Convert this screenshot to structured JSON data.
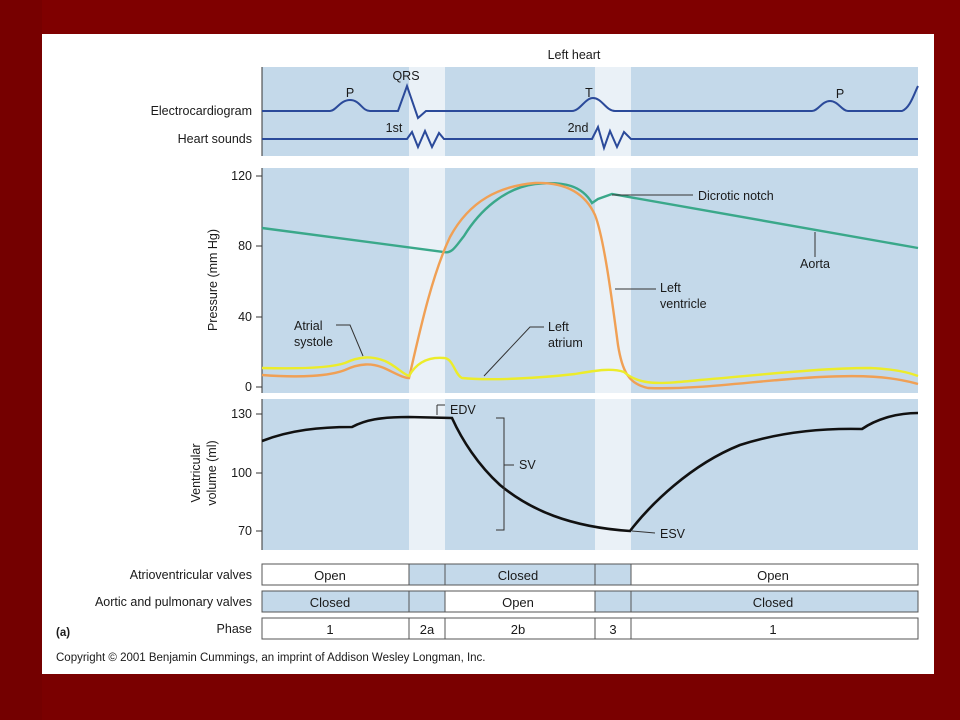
{
  "slide": {
    "background_color": "#7a0000",
    "shadow_color": "#5a0000"
  },
  "colors": {
    "panel_fill": "#c4d9ea",
    "highlight_band": "#eaf1f7",
    "ecg_line": "#2b4a9a",
    "aorta": "#3aa88a",
    "left_ventricle": "#f0a055",
    "left_atrium": "#ecec2a",
    "volume": "#111111"
  },
  "figure": {
    "title": "Left heart",
    "panel_label": "(a)",
    "copyright": "Copyright © 2001 Benjamin Cummings, an imprint of Addison Wesley Longman, Inc."
  },
  "top_panel": {
    "row_labels": [
      "Electrocardiogram",
      "Heart sounds"
    ],
    "wave_labels": {
      "p1": "P",
      "qrs": "QRS",
      "t": "T",
      "p2": "P"
    },
    "sound_labels": {
      "first": "1st",
      "second": "2nd"
    }
  },
  "pressure_panel": {
    "ylabel": "Pressure (mm Hg)",
    "ticks": [
      "120",
      "80",
      "40",
      "0"
    ],
    "annotations": {
      "dicrotic_notch": "Dicrotic notch",
      "aorta": "Aorta",
      "left_ventricle_1": "Left",
      "left_ventricle_2": "ventricle",
      "atrial_systole_1": "Atrial",
      "atrial_systole_2": "systole",
      "left_atrium_1": "Left",
      "left_atrium_2": "atrium"
    }
  },
  "volume_panel": {
    "ylabel_1": "Ventricular",
    "ylabel_2": "volume (ml)",
    "ticks": [
      "130",
      "100",
      "70"
    ],
    "annotations": {
      "edv": "EDV",
      "sv": "SV",
      "esv": "ESV"
    }
  },
  "table": {
    "row_labels": [
      "Atrioventricular valves",
      "Aortic and pulmonary valves",
      "Phase"
    ],
    "av_valves": [
      "Open",
      "",
      "Closed",
      "",
      "Open"
    ],
    "semilunar_valves": [
      "Closed",
      "",
      "Open",
      "",
      "Closed"
    ],
    "phase": [
      "1",
      "2a",
      "2b",
      "3",
      "1"
    ]
  }
}
